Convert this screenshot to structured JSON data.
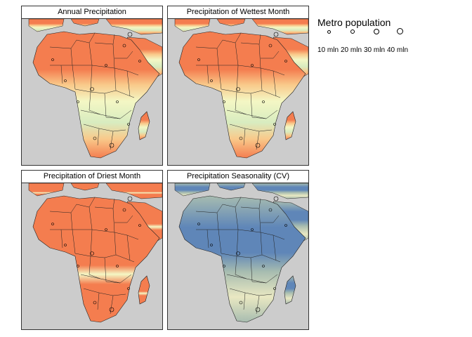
{
  "panels": [
    {
      "title": "Annual Precipitation",
      "palette": "annual"
    },
    {
      "title": "Precipitation of Wettest Month",
      "palette": "annual"
    },
    {
      "title": "Precipitation of Driest Month",
      "palette": "driest"
    },
    {
      "title": "Precipitation Seasonality (CV)",
      "palette": "seasonality"
    }
  ],
  "legend": {
    "title": "Metro population",
    "items": [
      {
        "label": "10 mln",
        "value": 10
      },
      {
        "label": "20 mln",
        "value": 20
      },
      {
        "label": "30 mln",
        "value": 30
      },
      {
        "label": "40 mln",
        "value": 40
      }
    ]
  },
  "colors": {
    "ocean": "#cccccc",
    "dry": "#f47d4f",
    "mid": "#f9c98a",
    "wet": "#f4f7c4",
    "wetter": "#d8ecc0",
    "season_low": "#e9e8c2",
    "season_mid": "#a7bcb0",
    "season_high": "#5f86b8",
    "border": "#222222"
  }
}
